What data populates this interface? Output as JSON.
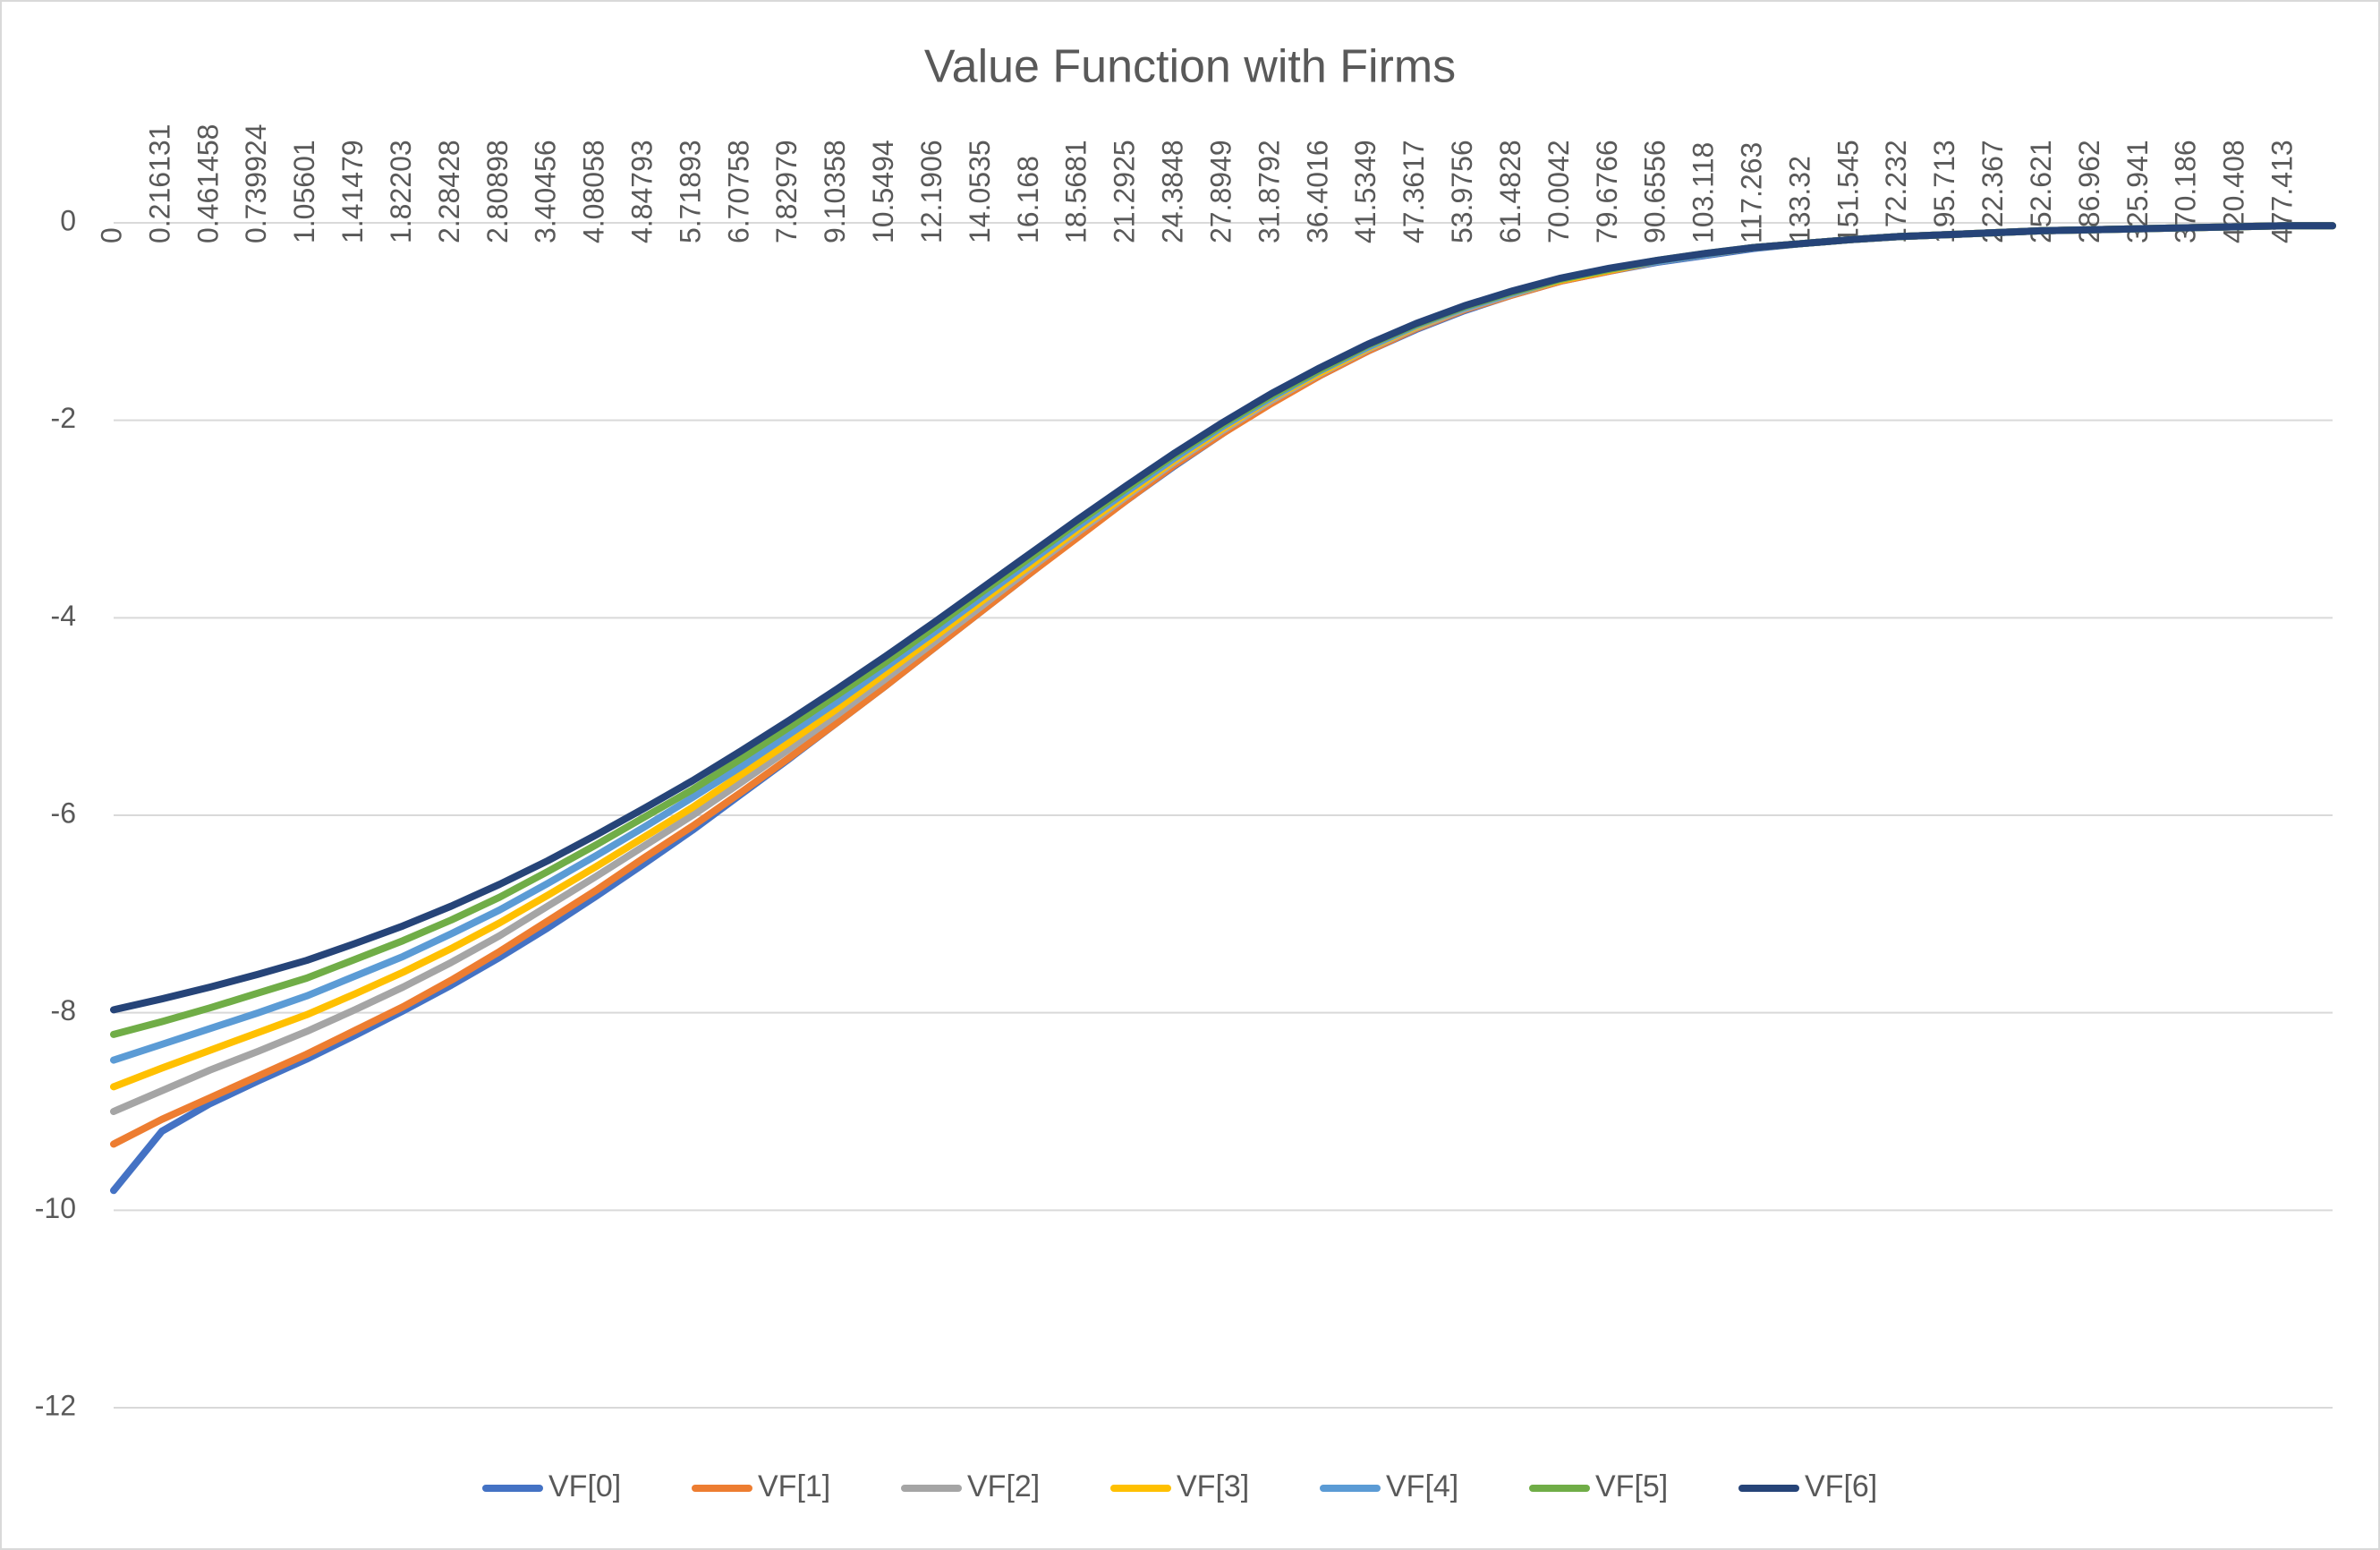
{
  "chart_data": {
    "type": "line",
    "title": "Value Function with Firms",
    "categories": [
      "0",
      "0.216131",
      "0.461458",
      "0.739924",
      "1.05601",
      "1.41479",
      "1.82203",
      "2.28428",
      "2.80898",
      "3.40456",
      "4.08058",
      "4.84793",
      "5.71893",
      "6.70758",
      "7.82979",
      "9.10358",
      "10.5494",
      "12.1906",
      "14.0535",
      "16.168",
      "18.5681",
      "21.2925",
      "24.3848",
      "27.8949",
      "31.8792",
      "36.4016",
      "41.5349",
      "47.3617",
      "53.9756",
      "61.4828",
      "70.0042",
      "79.6766",
      "90.6556",
      "103.118",
      "117.263",
      "133.32",
      "151.545",
      "172.232",
      "195.713",
      "222.367",
      "252.621",
      "286.962",
      "325.941",
      "370.186",
      "420.408",
      "477.413",
      null
    ],
    "series": [
      {
        "name": "VF[0]",
        "color": "#4472c4",
        "values": [
          -9.8,
          -9.2,
          -8.92,
          -8.69,
          -8.47,
          -8.23,
          -7.98,
          -7.72,
          -7.44,
          -7.14,
          -6.82,
          -6.49,
          -6.15,
          -5.79,
          -5.43,
          -5.06,
          -4.69,
          -4.31,
          -3.93,
          -3.55,
          -3.17,
          -2.81,
          -2.46,
          -2.13,
          -1.82,
          -1.55,
          -1.3,
          -1.08,
          -0.89,
          -0.73,
          -0.59,
          -0.49,
          -0.4,
          -0.33,
          -0.26,
          -0.21,
          -0.17,
          -0.14,
          -0.12,
          -0.1,
          -0.08,
          -0.07,
          -0.06,
          -0.05,
          -0.04,
          -0.03,
          -0.03
        ]
      },
      {
        "name": "VF[1]",
        "color": "#ed7d31",
        "values": [
          -9.33,
          -9.08,
          -8.86,
          -8.64,
          -8.42,
          -8.18,
          -7.94,
          -7.67,
          -7.38,
          -7.07,
          -6.76,
          -6.43,
          -6.11,
          -5.77,
          -5.42,
          -5.06,
          -4.69,
          -4.31,
          -3.93,
          -3.55,
          -3.18,
          -2.81,
          -2.45,
          -2.13,
          -1.83,
          -1.55,
          -1.3,
          -1.07,
          -0.88,
          -0.73,
          -0.59,
          -0.49,
          -0.39,
          -0.32,
          -0.25,
          -0.21,
          -0.17,
          -0.14,
          -0.12,
          -0.1,
          -0.08,
          -0.07,
          -0.06,
          -0.05,
          -0.04,
          -0.03,
          -0.03
        ]
      },
      {
        "name": "VF[2]",
        "color": "#a5a5a5",
        "values": [
          -9.0,
          -8.79,
          -8.58,
          -8.39,
          -8.19,
          -7.97,
          -7.74,
          -7.49,
          -7.22,
          -6.92,
          -6.62,
          -6.31,
          -6.0,
          -5.67,
          -5.33,
          -4.98,
          -4.62,
          -4.25,
          -3.88,
          -3.5,
          -3.13,
          -2.77,
          -2.42,
          -2.1,
          -1.8,
          -1.53,
          -1.28,
          -1.06,
          -0.87,
          -0.72,
          -0.58,
          -0.48,
          -0.39,
          -0.32,
          -0.25,
          -0.21,
          -0.17,
          -0.14,
          -0.12,
          -0.1,
          -0.08,
          -0.07,
          -0.06,
          -0.05,
          -0.04,
          -0.03,
          -0.03
        ]
      },
      {
        "name": "VF[3]",
        "color": "#ffc000",
        "values": [
          -8.75,
          -8.56,
          -8.38,
          -8.2,
          -8.02,
          -7.81,
          -7.59,
          -7.35,
          -7.09,
          -6.81,
          -6.52,
          -6.22,
          -5.92,
          -5.59,
          -5.26,
          -4.92,
          -4.56,
          -4.2,
          -3.83,
          -3.47,
          -3.1,
          -2.75,
          -2.4,
          -2.08,
          -1.78,
          -1.52,
          -1.27,
          -1.05,
          -0.86,
          -0.71,
          -0.58,
          -0.48,
          -0.39,
          -0.32,
          -0.25,
          -0.21,
          -0.17,
          -0.14,
          -0.12,
          -0.1,
          -0.08,
          -0.07,
          -0.06,
          -0.05,
          -0.04,
          -0.03,
          -0.03
        ]
      },
      {
        "name": "VF[4]",
        "color": "#5b9bd5",
        "values": [
          -8.48,
          -8.32,
          -8.16,
          -8.0,
          -7.83,
          -7.63,
          -7.43,
          -7.2,
          -6.96,
          -6.69,
          -6.41,
          -6.12,
          -5.82,
          -5.51,
          -5.18,
          -4.85,
          -4.5,
          -4.15,
          -3.79,
          -3.43,
          -3.07,
          -2.72,
          -2.38,
          -2.06,
          -1.77,
          -1.5,
          -1.26,
          -1.04,
          -0.86,
          -0.71,
          -0.57,
          -0.47,
          -0.39,
          -0.32,
          -0.25,
          -0.21,
          -0.17,
          -0.14,
          -0.12,
          -0.1,
          -0.08,
          -0.07,
          -0.06,
          -0.05,
          -0.04,
          -0.03,
          -0.03
        ]
      },
      {
        "name": "VF[5]",
        "color": "#70ad47",
        "values": [
          -8.22,
          -8.09,
          -7.95,
          -7.8,
          -7.65,
          -7.46,
          -7.27,
          -7.06,
          -6.83,
          -6.57,
          -6.3,
          -6.02,
          -5.74,
          -5.43,
          -5.11,
          -4.78,
          -4.45,
          -4.1,
          -3.74,
          -3.39,
          -3.03,
          -2.69,
          -2.35,
          -2.04,
          -1.75,
          -1.49,
          -1.24,
          -1.03,
          -0.85,
          -0.7,
          -0.57,
          -0.47,
          -0.38,
          -0.31,
          -0.25,
          -0.21,
          -0.17,
          -0.14,
          -0.12,
          -0.1,
          -0.08,
          -0.07,
          -0.06,
          -0.05,
          -0.04,
          -0.03,
          -0.03
        ]
      },
      {
        "name": "VF[6]",
        "color": "#264478",
        "values": [
          -7.97,
          -7.86,
          -7.74,
          -7.61,
          -7.47,
          -7.3,
          -7.12,
          -6.92,
          -6.7,
          -6.46,
          -6.2,
          -5.93,
          -5.65,
          -5.35,
          -5.04,
          -4.72,
          -4.39,
          -4.05,
          -3.7,
          -3.35,
          -3.0,
          -2.66,
          -2.33,
          -2.02,
          -1.73,
          -1.47,
          -1.23,
          -1.02,
          -0.84,
          -0.69,
          -0.56,
          -0.46,
          -0.38,
          -0.31,
          -0.25,
          -0.21,
          -0.17,
          -0.14,
          -0.12,
          -0.1,
          -0.08,
          -0.07,
          -0.06,
          -0.05,
          -0.04,
          -0.03,
          -0.03
        ]
      }
    ],
    "ylim": [
      -12,
      0
    ],
    "yticks": [
      -12,
      -10,
      -8,
      -6,
      -4,
      -2,
      0
    ],
    "grid": true,
    "legend": "bottom"
  }
}
